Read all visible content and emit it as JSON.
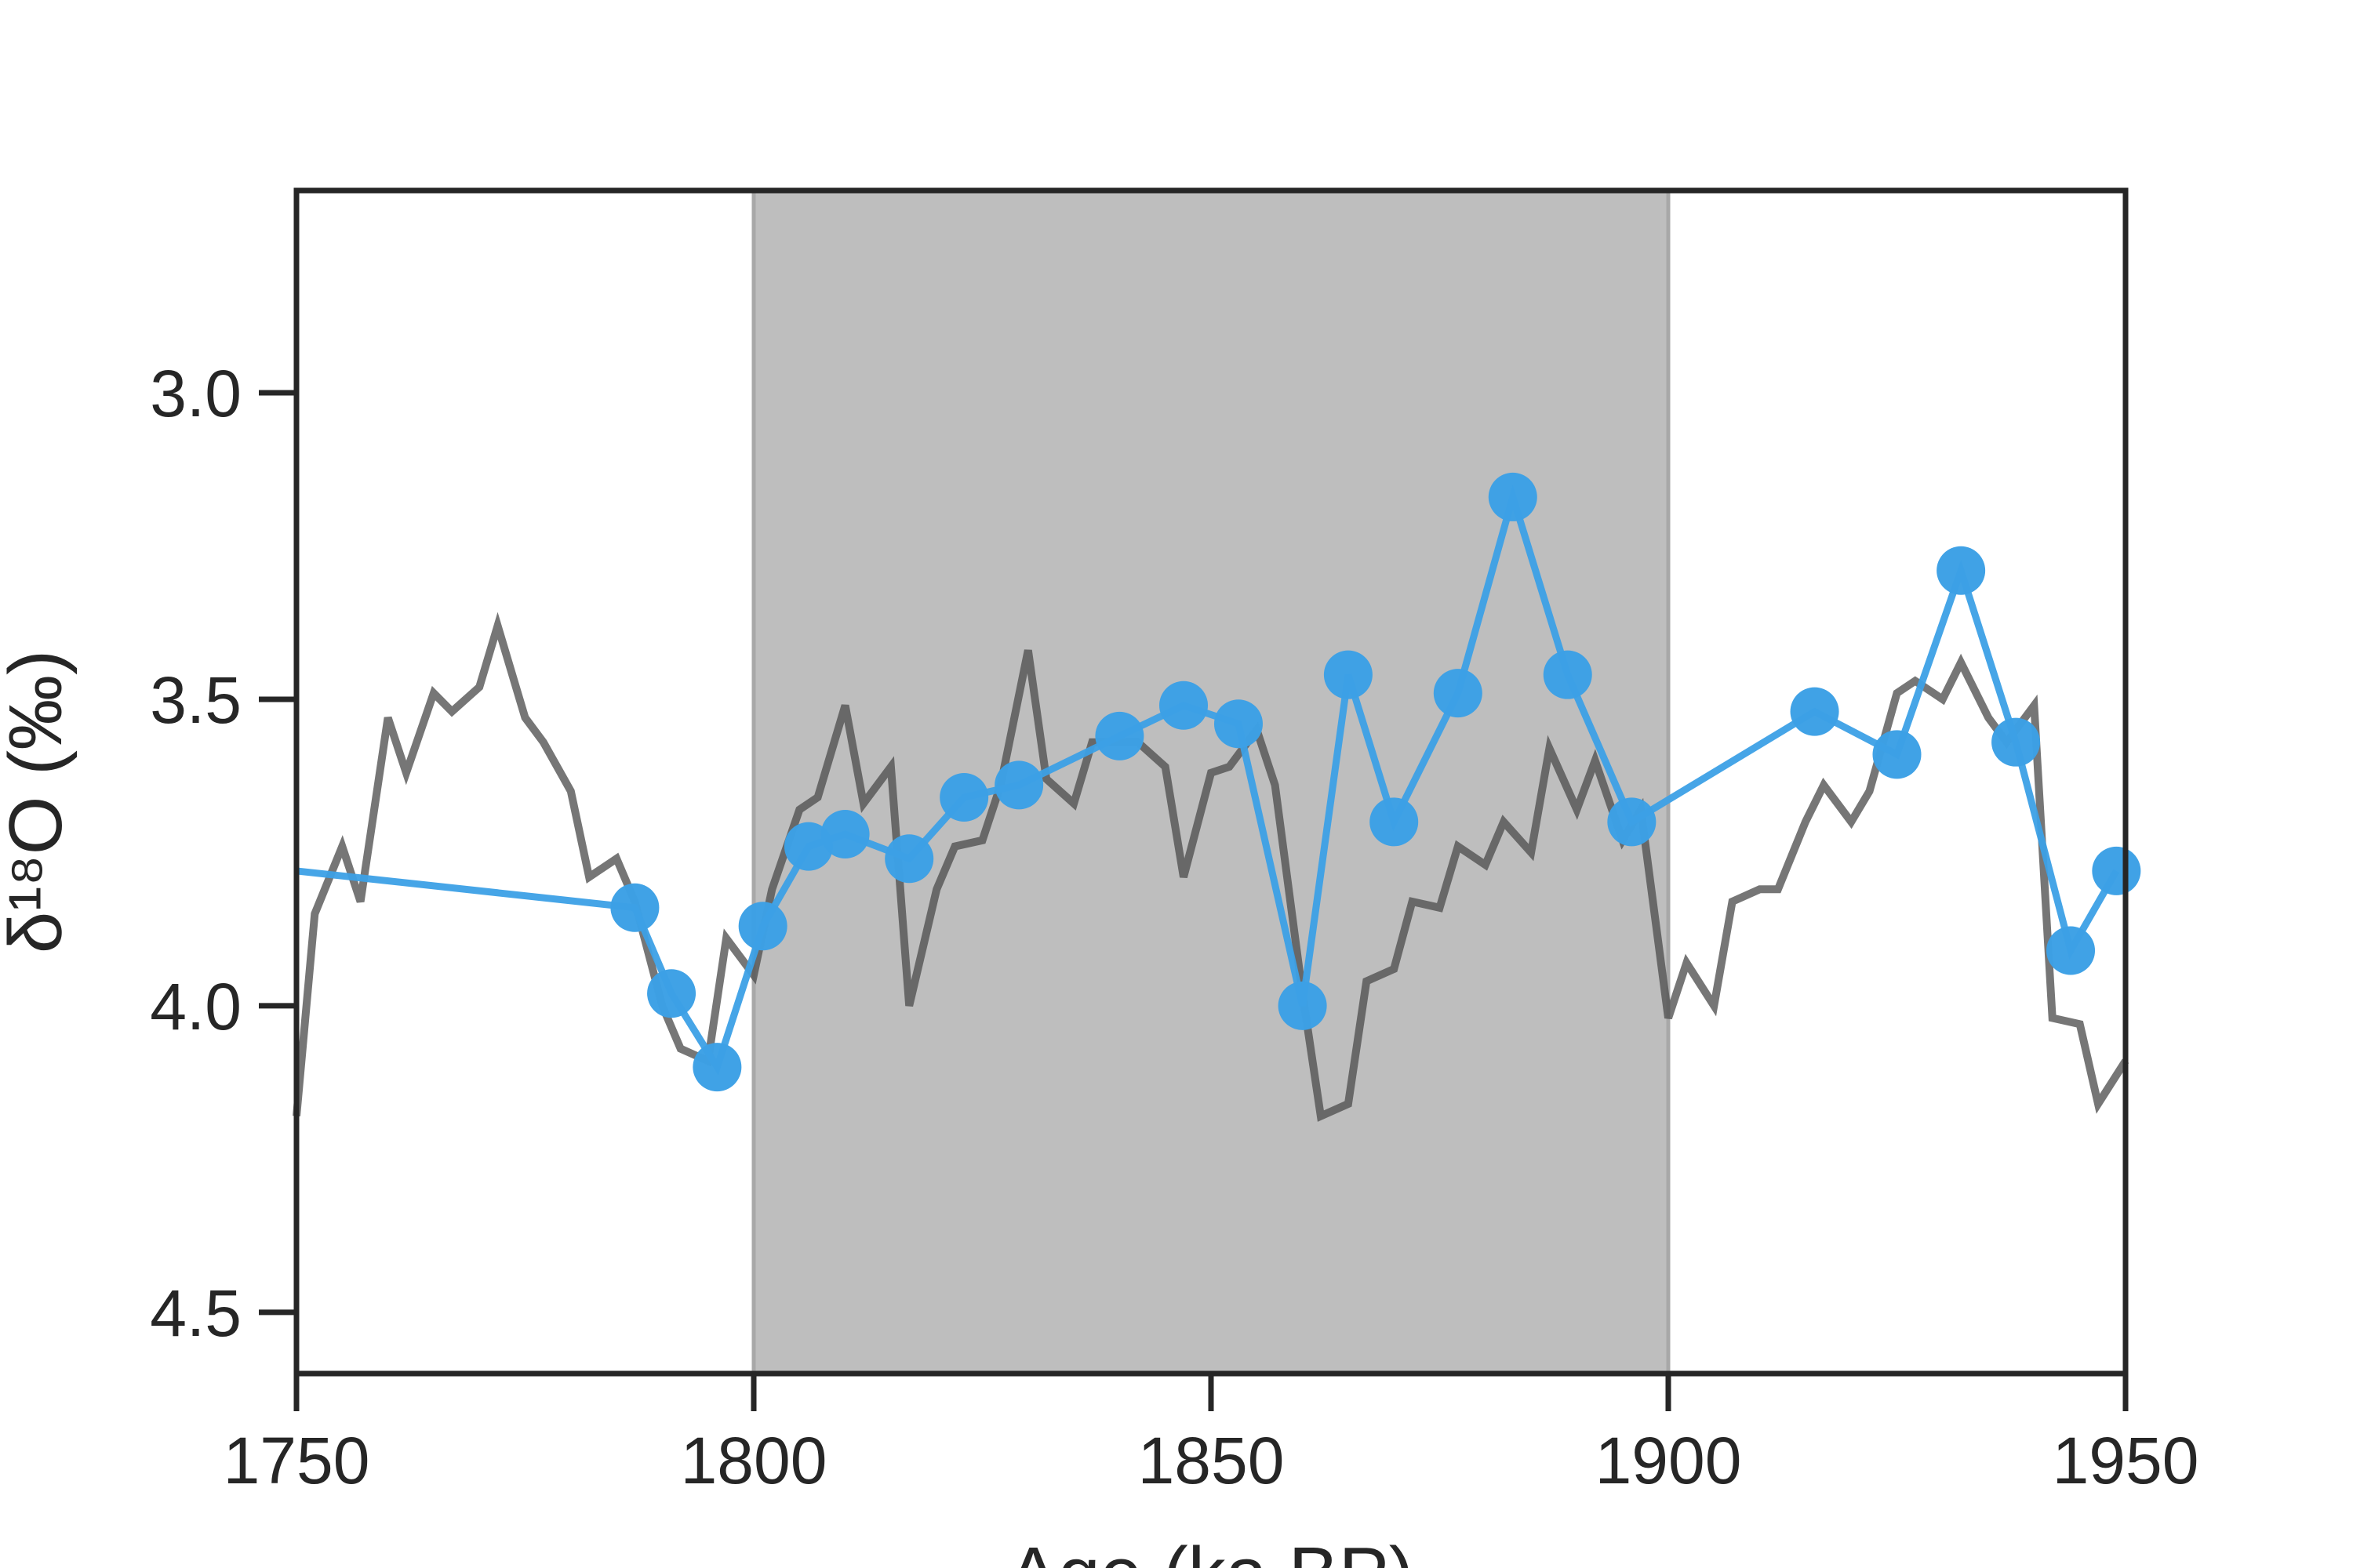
{
  "chart_data": {
    "type": "line",
    "xlabel": "Age (ka BP)",
    "ylabel": "δ¹⁸O (‰)",
    "xlim": [
      1750,
      1950
    ],
    "ylim": [
      4.6,
      2.67
    ],
    "y_inverted": true,
    "xticks": [
      "1750",
      "1800",
      "1850",
      "1900",
      "1950"
    ],
    "yticks": [
      "3.0",
      "3.5",
      "4.0",
      "4.5"
    ],
    "grid": false,
    "shaded_interval": {
      "x": [
        1800,
        1900
      ],
      "color": "#bebebe"
    },
    "series": [
      {
        "color": "#505050",
        "marker": "none",
        "x": [
          1750,
          1752,
          1755,
          1757,
          1760,
          1762,
          1765,
          1767,
          1770,
          1772,
          1775,
          1777,
          1780,
          1782,
          1785,
          1787,
          1790,
          1792,
          1795,
          1797,
          1800,
          1802,
          1805,
          1807,
          1810,
          1812,
          1815,
          1817,
          1820,
          1822,
          1825,
          1827,
          1830,
          1832,
          1835,
          1837,
          1840,
          1842,
          1845,
          1847,
          1850,
          1852,
          1855,
          1857,
          1860,
          1862,
          1865,
          1867,
          1870,
          1872,
          1875,
          1877,
          1880,
          1882,
          1885,
          1887,
          1890,
          1892,
          1895,
          1897,
          1900,
          1902,
          1905,
          1907,
          1910,
          1912,
          1915,
          1917,
          1920,
          1922,
          1925,
          1927,
          1930,
          1932,
          1935,
          1937,
          1940,
          1942,
          1945,
          1947,
          1950
        ],
        "y": [
          4.18,
          3.85,
          3.74,
          3.83,
          3.53,
          3.62,
          3.49,
          3.52,
          3.48,
          3.38,
          3.53,
          3.57,
          3.65,
          3.79,
          3.76,
          3.83,
          4.0,
          4.07,
          4.09,
          3.89,
          3.95,
          3.81,
          3.68,
          3.66,
          3.51,
          3.67,
          3.61,
          4.0,
          3.81,
          3.74,
          3.73,
          3.64,
          3.42,
          3.63,
          3.67,
          3.57,
          3.57,
          3.57,
          3.61,
          3.79,
          3.62,
          3.61,
          3.55,
          3.64,
          3.98,
          4.18,
          4.16,
          3.96,
          3.94,
          3.83,
          3.84,
          3.74,
          3.77,
          3.7,
          3.75,
          3.58,
          3.68,
          3.6,
          3.73,
          3.68,
          4.02,
          3.93,
          4.0,
          3.83,
          3.81,
          3.81,
          3.7,
          3.64,
          3.7,
          3.65,
          3.49,
          3.47,
          3.5,
          3.44,
          3.53,
          3.57,
          3.51,
          4.02,
          4.03,
          4.16,
          4.09
        ]
      },
      {
        "color": "#3ca0e6",
        "marker": "circle",
        "x": [
          1750,
          1787,
          1791,
          1796,
          1801,
          1806,
          1810,
          1817,
          1823,
          1829,
          1840,
          1847,
          1853,
          1860,
          1865,
          1870,
          1877,
          1883,
          1889,
          1896,
          1916,
          1925,
          1932,
          1938,
          1944,
          1949
        ],
        "y": [
          3.78,
          3.84,
          3.98,
          4.1,
          3.87,
          3.74,
          3.72,
          3.76,
          3.66,
          3.64,
          3.56,
          3.51,
          3.54,
          4.0,
          3.46,
          3.7,
          3.49,
          3.17,
          3.46,
          3.7,
          3.52,
          3.59,
          3.29,
          3.57,
          3.91,
          3.78
        ]
      }
    ]
  }
}
